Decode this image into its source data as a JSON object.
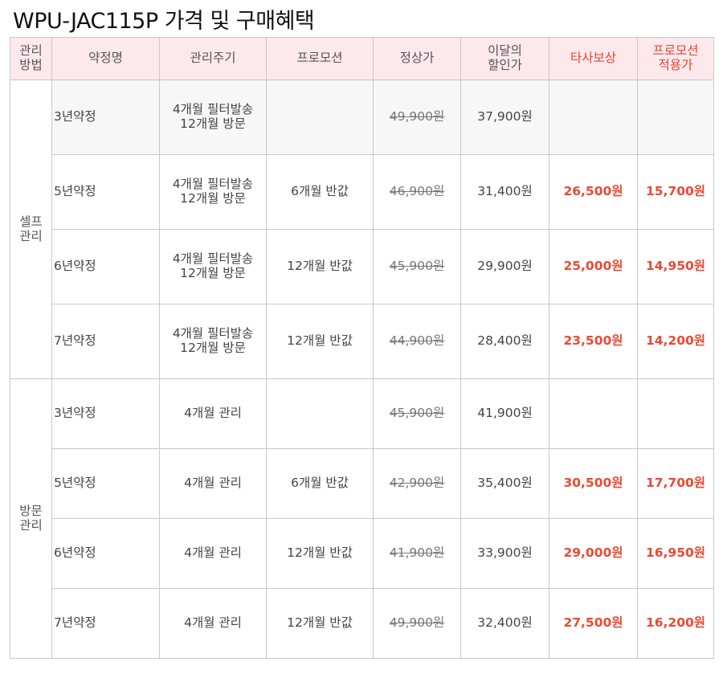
{
  "title": "WPU-JAC115P 가격 및 구매혜택",
  "headers": {
    "method": [
      "관리",
      "방법"
    ],
    "plan": "약정명",
    "cycle": "관리주기",
    "promo": "프로모션",
    "regular": "정상가",
    "discount": [
      "이달의",
      "할인가"
    ],
    "comp": "타사보상",
    "promo_price": [
      "프로모션",
      "적용가"
    ]
  },
  "groups": [
    {
      "label": [
        "셀프",
        "관리"
      ],
      "rows": [
        {
          "plan": "3년약정",
          "cycle": [
            "4개월 필터발송",
            "12개월 방문"
          ],
          "promo": "",
          "regular": "49,900원",
          "discount": "37,900원",
          "comp": "",
          "promo_price": ""
        },
        {
          "plan": "5년약정",
          "cycle": [
            "4개월 필터발송",
            "12개월 방문"
          ],
          "promo": "6개월 반값",
          "regular": "46,900원",
          "discount": "31,400원",
          "comp": "26,500원",
          "promo_price": "15,700원"
        },
        {
          "plan": "6년약정",
          "cycle": [
            "4개월 필터발송",
            "12개월 방문"
          ],
          "promo": "12개월 반값",
          "regular": "45,900원",
          "discount": "29,900원",
          "comp": "25,000원",
          "promo_price": "14,950원"
        },
        {
          "plan": "7년약정",
          "cycle": [
            "4개월 필터발송",
            "12개월 방문"
          ],
          "promo": "12개월 반값",
          "regular": "44,900원",
          "discount": "28,400원",
          "comp": "23,500원",
          "promo_price": "14,200원"
        }
      ]
    },
    {
      "label": [
        "방문",
        "관리"
      ],
      "rows": [
        {
          "plan": "3년약정",
          "cycle": [
            "4개월 관리"
          ],
          "promo": "",
          "regular": "45,900원",
          "discount": "41,900원",
          "comp": "",
          "promo_price": ""
        },
        {
          "plan": "5년약정",
          "cycle": [
            "4개월 관리"
          ],
          "promo": "6개월 반값",
          "regular": "42,900원",
          "discount": "35,400원",
          "comp": "30,500원",
          "promo_price": "17,700원"
        },
        {
          "plan": "6년약정",
          "cycle": [
            "4개월 관리"
          ],
          "promo": "12개월 반값",
          "regular": "41,900원",
          "discount": "33,900원",
          "comp": "29,000원",
          "promo_price": "16,950원"
        },
        {
          "plan": "7년약정",
          "cycle": [
            "4개월 관리"
          ],
          "promo": "12개월 반값",
          "regular": "49,900원",
          "discount": "32,400원",
          "comp": "27,500원",
          "promo_price": "16,200원"
        }
      ]
    }
  ],
  "colors": {
    "header_bg": "#fde9ec",
    "accent_red": "#ea4a33",
    "border": "#c8c8c8"
  }
}
